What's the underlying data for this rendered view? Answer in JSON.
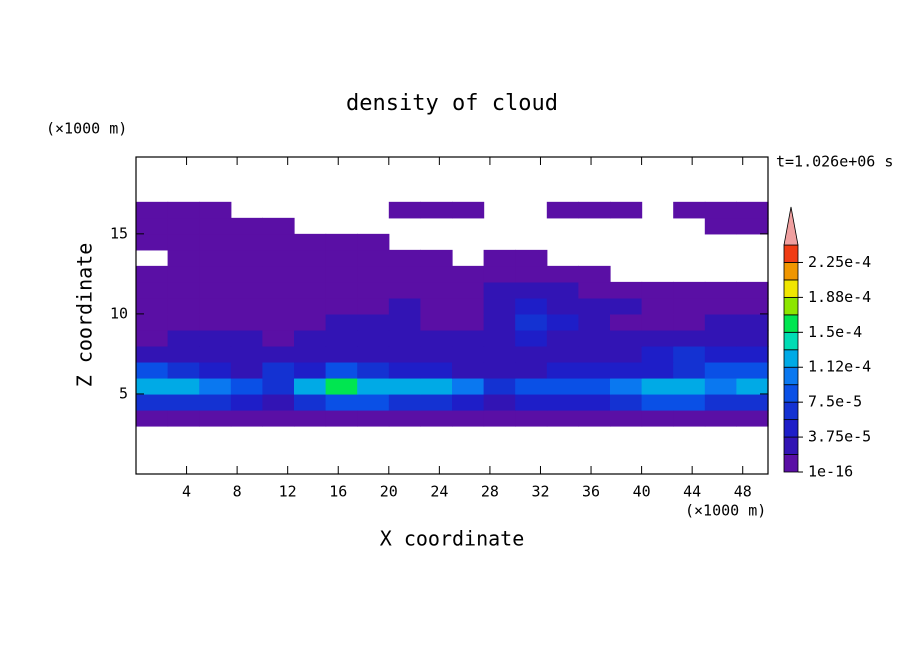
{
  "chart_data": {
    "type": "contour",
    "title": "density of cloud",
    "x_label": "X coordinate",
    "y_label": "Z coordinate",
    "x_unit": "(×1000 m)",
    "y_unit": "(×1000 m)",
    "time_label": "t=1.026e+06 s",
    "xlim": [
      0,
      50
    ],
    "ylim": [
      0,
      19.8
    ],
    "xticks": [
      4,
      8,
      12,
      16,
      20,
      24,
      28,
      32,
      36,
      40,
      44,
      48
    ],
    "yticks": [
      5,
      10,
      15
    ],
    "x": [
      1.25,
      3.75,
      6.25,
      8.75,
      11.25,
      13.75,
      16.25,
      18.75,
      21.25,
      23.75,
      26.25,
      28.75,
      31.25,
      33.75,
      36.25,
      38.75,
      41.25,
      43.75,
      46.25,
      48.75
    ],
    "z": [
      3.5,
      4.5,
      5.5,
      6.5,
      7.5,
      8.5,
      9.5,
      10.5,
      11.5,
      12.5,
      13.5,
      14.5,
      15.5,
      16.5
    ],
    "values": [
      [
        1e-05,
        1e-05,
        1e-05,
        1e-05,
        1e-05,
        1e-05,
        1e-05,
        1e-05,
        1e-05,
        1e-05,
        1e-05,
        1e-05,
        1e-05,
        1e-05,
        1e-05,
        1e-05,
        1e-05,
        1e-05,
        1e-05,
        1e-05
      ],
      [
        6e-05,
        6e-05,
        6e-05,
        4.5e-05,
        3e-05,
        6e-05,
        8e-05,
        8e-05,
        6e-05,
        6e-05,
        4.5e-05,
        3e-05,
        4.5e-05,
        4.5e-05,
        4.5e-05,
        6e-05,
        8e-05,
        8e-05,
        6e-05,
        6e-05
      ],
      [
        0.00012,
        0.00012,
        0.0001,
        8e-05,
        6e-05,
        0.00012,
        0.00016,
        0.00013,
        0.00012,
        0.00012,
        0.0001,
        6e-05,
        8e-05,
        8e-05,
        8e-05,
        0.0001,
        0.00013,
        0.00013,
        0.0001,
        0.00012
      ],
      [
        8e-05,
        6e-05,
        4.5e-05,
        3e-05,
        6e-05,
        4.5e-05,
        8e-05,
        6e-05,
        4.5e-05,
        4.5e-05,
        3e-05,
        3e-05,
        3e-05,
        4.5e-05,
        4.5e-05,
        4.5e-05,
        4.5e-05,
        6e-05,
        8e-05,
        8e-05
      ],
      [
        3e-05,
        3e-05,
        3e-05,
        3e-05,
        3e-05,
        3e-05,
        3e-05,
        3e-05,
        3e-05,
        3e-05,
        3e-05,
        3e-05,
        3e-05,
        3e-05,
        3e-05,
        3e-05,
        4.5e-05,
        6e-05,
        4.5e-05,
        4.5e-05
      ],
      [
        1e-05,
        3e-05,
        3e-05,
        3e-05,
        1e-05,
        3e-05,
        3e-05,
        3e-05,
        3e-05,
        3e-05,
        3e-05,
        3e-05,
        4.5e-05,
        3e-05,
        3e-05,
        3e-05,
        3e-05,
        3e-05,
        3e-05,
        3e-05
      ],
      [
        1e-05,
        1e-05,
        1e-05,
        1e-05,
        1e-05,
        1e-05,
        3e-05,
        3e-05,
        3e-05,
        1e-05,
        1e-05,
        3e-05,
        6e-05,
        4.5e-05,
        3e-05,
        1e-05,
        1e-05,
        1e-05,
        3e-05,
        3e-05
      ],
      [
        1e-05,
        1e-05,
        1e-05,
        1e-05,
        1e-05,
        1e-05,
        1e-05,
        1e-05,
        3e-05,
        1e-05,
        1e-05,
        3e-05,
        4.5e-05,
        3e-05,
        3e-05,
        3e-05,
        1e-05,
        1e-05,
        1e-05,
        1e-05
      ],
      [
        1e-05,
        1e-05,
        1e-05,
        1e-05,
        1e-05,
        1e-05,
        1e-05,
        1e-05,
        1e-05,
        1e-05,
        1e-05,
        3e-05,
        3e-05,
        3e-05,
        1e-05,
        1e-05,
        1e-05,
        1e-05,
        1e-05,
        1e-05
      ],
      [
        1e-05,
        1e-05,
        1e-05,
        1e-05,
        1e-05,
        1e-05,
        1e-05,
        1e-05,
        1e-05,
        1e-05,
        1e-05,
        1e-05,
        1e-05,
        1e-05,
        1e-05,
        null,
        null,
        null,
        null,
        null
      ],
      [
        null,
        1e-05,
        1e-05,
        1e-05,
        1e-05,
        1e-05,
        1e-05,
        1e-05,
        1e-05,
        1e-05,
        null,
        1e-05,
        1e-05,
        null,
        null,
        null,
        null,
        null,
        null,
        null
      ],
      [
        1e-05,
        1e-05,
        1e-05,
        1e-05,
        1e-05,
        1e-05,
        1e-05,
        1e-05,
        null,
        null,
        null,
        null,
        null,
        null,
        null,
        null,
        null,
        null,
        null,
        null
      ],
      [
        1e-05,
        1e-05,
        1e-05,
        1e-05,
        1e-05,
        null,
        null,
        null,
        null,
        null,
        null,
        null,
        null,
        null,
        null,
        null,
        null,
        null,
        1e-05,
        1e-05
      ],
      [
        1e-05,
        1e-05,
        1e-05,
        null,
        null,
        null,
        null,
        null,
        1e-05,
        1e-05,
        1e-05,
        null,
        null,
        1e-05,
        1e-05,
        1e-05,
        null,
        1e-05,
        1e-05,
        1e-05
      ]
    ],
    "colorbar": {
      "ticks": [
        {
          "value": 1e-16,
          "label": "1e-16"
        },
        {
          "value": 3.75e-05,
          "label": "3.75e-5"
        },
        {
          "value": 7.5e-05,
          "label": "7.5e-5"
        },
        {
          "value": 0.000112,
          "label": "1.12e-4"
        },
        {
          "value": 0.00015,
          "label": "1.5e-4"
        },
        {
          "value": 0.000188,
          "label": "1.88e-4"
        },
        {
          "value": 0.000225,
          "label": "2.25e-4"
        }
      ],
      "colors": [
        "#5a0fa5",
        "#3214b4",
        "#1e1ec8",
        "#1432d2",
        "#0a50e6",
        "#0a78f0",
        "#00aae6",
        "#00dcb4",
        "#00e650",
        "#8ce600",
        "#f0e600",
        "#f09600",
        "#f03c14"
      ],
      "extend_color": "#f0a0a0"
    }
  }
}
